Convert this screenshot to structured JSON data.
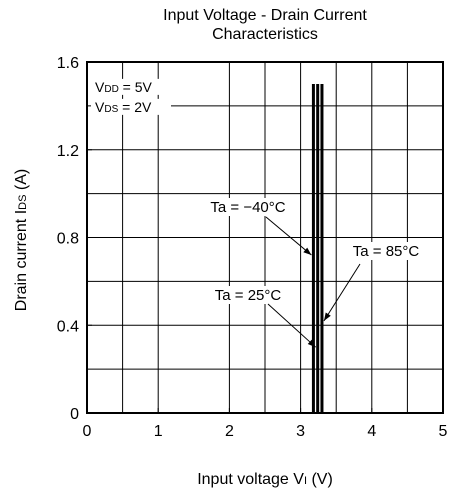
{
  "chart_data": {
    "type": "line",
    "title": [
      "Input Voltage - Drain Current",
      "Characteristics"
    ],
    "xlabel": {
      "main": "Input voltage  V",
      "sub": "I",
      "unit": " (V)"
    },
    "ylabel": {
      "main": "Drain current  I",
      "sub": "DS",
      "unit": " (A)"
    },
    "xlim": [
      0,
      5
    ],
    "ylim": [
      0,
      1.6
    ],
    "xticks": [
      0,
      1,
      2,
      3,
      4,
      5
    ],
    "xtick_labels": [
      "0",
      "1",
      "2",
      "3",
      "4",
      "5"
    ],
    "yticks": [
      0,
      0.4,
      0.8,
      1.2,
      1.6
    ],
    "ytick_labels": [
      "0",
      "0.4",
      "0.8",
      "1.2",
      "1.6"
    ],
    "x_gridlines": [
      0.5,
      1,
      2,
      2.5,
      3,
      3.5,
      4,
      4.5
    ],
    "y_gridlines": [
      0.2,
      0.4,
      0.6,
      0.8,
      1.0,
      1.2,
      1.4
    ],
    "grid": true,
    "conditions": [
      {
        "label": "V",
        "sub": "DD",
        "rest": " = 5V"
      },
      {
        "label": "V",
        "sub": "DS",
        "rest": " = 2V"
      }
    ],
    "series": [
      {
        "name": "Ta = −40°C",
        "x": [
          3.18,
          3.18
        ],
        "y": [
          0,
          1.5
        ]
      },
      {
        "name": "Ta = 25°C",
        "x": [
          3.24,
          3.24
        ],
        "y": [
          0,
          1.5
        ]
      },
      {
        "name": "Ta = 85°C",
        "x": [
          3.3,
          3.3
        ],
        "y": [
          0,
          1.5
        ]
      }
    ],
    "annotations": [
      {
        "text": "Ta = −40°C",
        "series": 0
      },
      {
        "text": "Ta = 25°C",
        "series": 1
      },
      {
        "text": "Ta = 85°C",
        "series": 2
      }
    ],
    "colors": {
      "line": "#000000",
      "grid": "#000000"
    }
  }
}
